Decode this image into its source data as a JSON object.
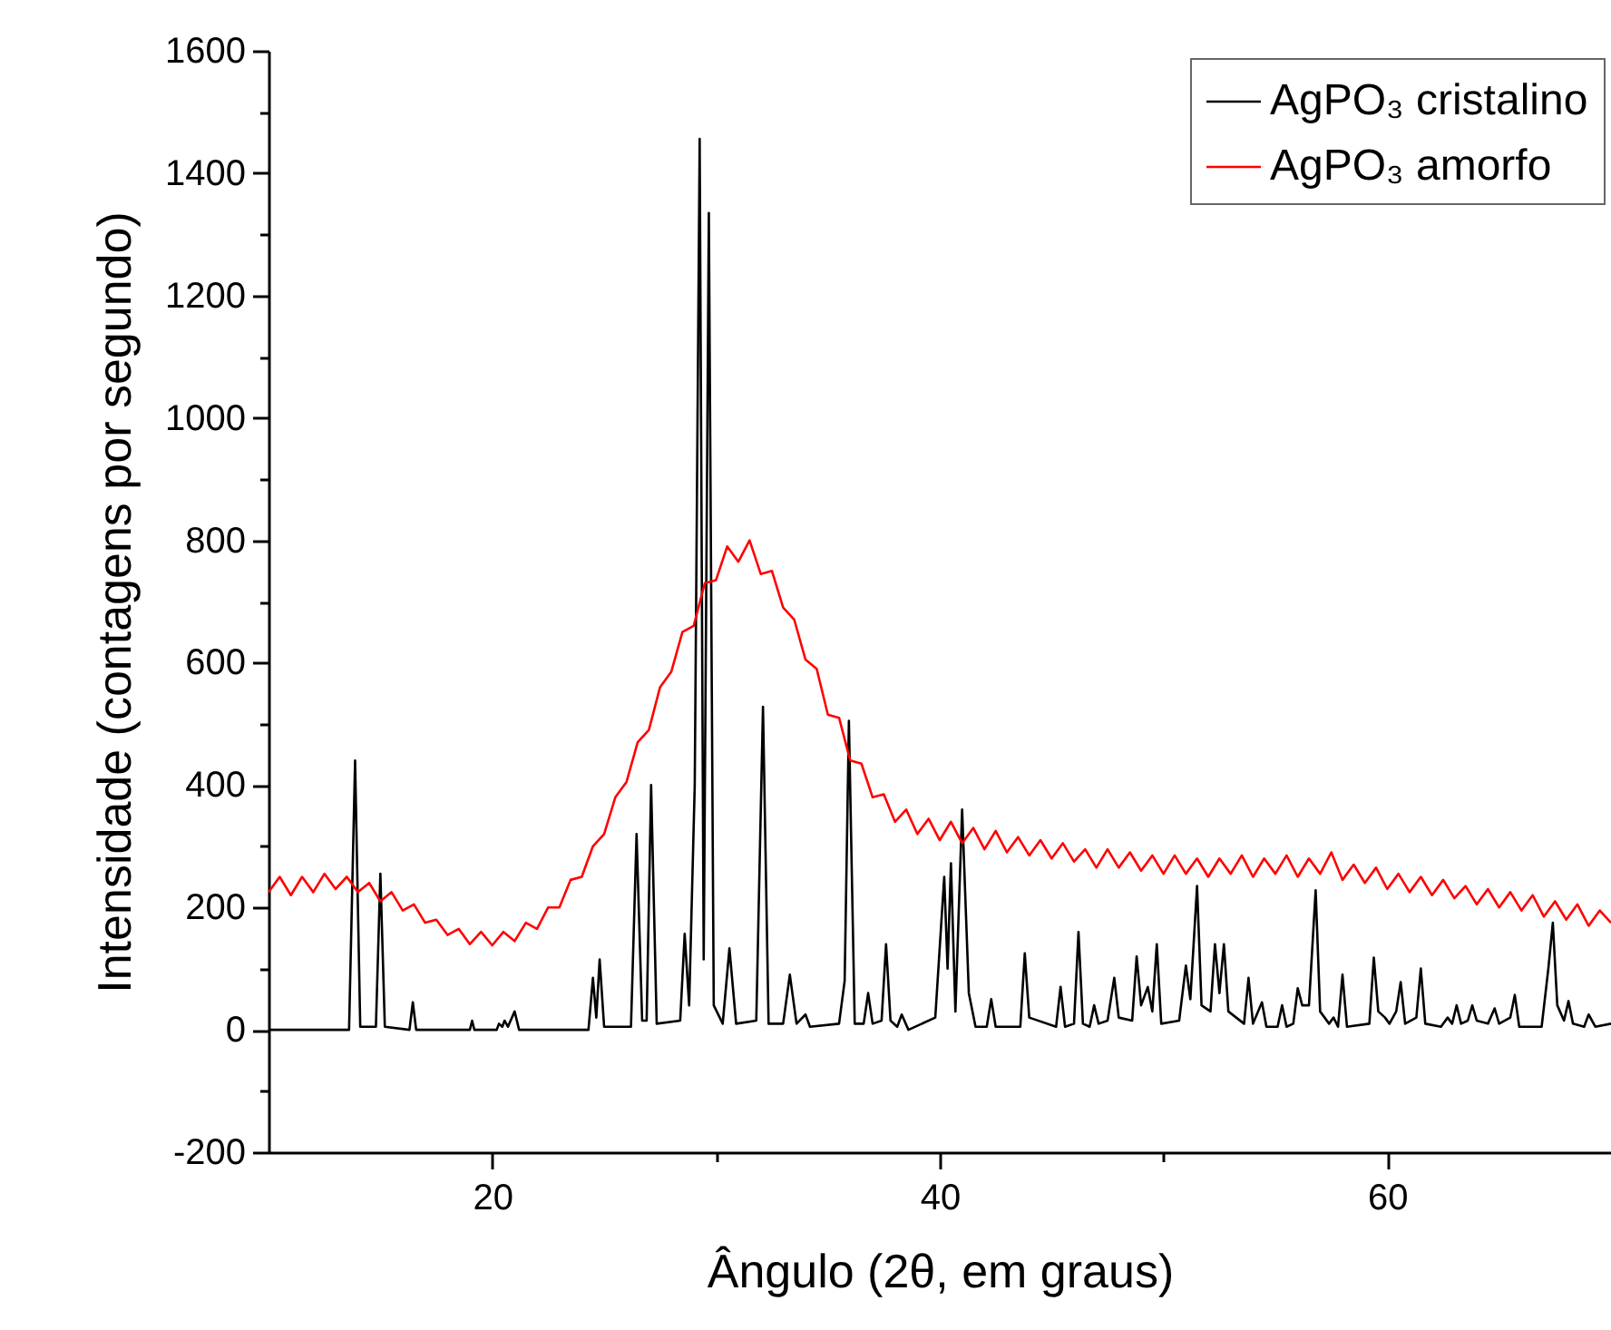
{
  "chart_data": {
    "type": "line",
    "xlabel": "Ângulo (2θ, em graus)",
    "ylabel": "Intensidade (contagens por segundo)",
    "xlim": [
      10,
      70
    ],
    "xticks": [
      20,
      {
        "value": 30,
        "label": null
      },
      40,
      {
        "value": 50,
        "label": null
      },
      60
    ],
    "ylim": [
      -200,
      1600
    ],
    "yticks": [
      -200,
      {
        "value": -100,
        "label": null
      },
      0,
      {
        "value": 100,
        "label": null
      },
      200,
      {
        "value": 300,
        "label": null
      },
      400,
      {
        "value": 500,
        "label": null
      },
      600,
      {
        "value": 700,
        "label": null
      },
      800,
      {
        "value": 900,
        "label": null
      },
      1000,
      {
        "value": 1100,
        "label": null
      },
      1200,
      {
        "value": 1300,
        "label": null
      },
      1400,
      {
        "value": 1500,
        "label": null
      },
      1600
    ],
    "grid": false,
    "legend": "top right",
    "series": [
      {
        "name": "AgPO₃ cristalino",
        "color": "#000000",
        "x": [
          10,
          13.6,
          13.87,
          14.1,
          14.8,
          15.0,
          15.2,
          16.3,
          16.45,
          16.6,
          19.0,
          19.1,
          19.2,
          20.2,
          20.3,
          20.45,
          20.55,
          20.7,
          21.0,
          21.2,
          24.3,
          24.5,
          24.65,
          24.8,
          25.0,
          26.2,
          26.45,
          26.7,
          26.9,
          27.1,
          27.35,
          28.4,
          28.6,
          28.8,
          29.05,
          29.27,
          29.45,
          29.68,
          29.9,
          30.3,
          30.6,
          30.9,
          31.8,
          32.1,
          32.35,
          33.0,
          33.3,
          33.6,
          34.0,
          34.2,
          35.5,
          35.75,
          35.94,
          36.2,
          36.6,
          36.8,
          37.0,
          37.4,
          37.6,
          37.8,
          38.1,
          38.3,
          38.6,
          39.8,
          40.2,
          40.35,
          40.5,
          40.7,
          41.0,
          41.3,
          41.6,
          42.1,
          42.3,
          42.5,
          43.6,
          43.8,
          44.0,
          45.2,
          45.4,
          45.6,
          46.0,
          46.2,
          46.4,
          46.7,
          46.9,
          47.1,
          47.5,
          47.8,
          48.0,
          48.6,
          48.8,
          49.0,
          49.3,
          49.5,
          49.7,
          49.9,
          50.7,
          51.0,
          51.2,
          51.5,
          51.7,
          52.1,
          52.3,
          52.5,
          52.7,
          52.9,
          53.6,
          53.8,
          54.0,
          54.4,
          54.6,
          55.1,
          55.3,
          55.5,
          55.8,
          56.0,
          56.2,
          56.5,
          56.8,
          57.0,
          57.4,
          57.6,
          57.8,
          58.0,
          58.2,
          59.2,
          59.4,
          59.6,
          59.9,
          60.1,
          60.4,
          60.6,
          60.8,
          61.3,
          61.5,
          61.7,
          62.4,
          62.7,
          62.9,
          63.1,
          63.3,
          63.6,
          63.8,
          64.0,
          64.5,
          64.8,
          65.0,
          65.5,
          65.7,
          65.9,
          66.9,
          67.2,
          67.4,
          67.6,
          67.9,
          68.1,
          68.3,
          68.8,
          69.0,
          69.3,
          70
        ],
        "values": [
          0,
          0,
          440,
          5,
          5,
          255,
          5,
          0,
          45,
          0,
          0,
          15,
          0,
          0,
          10,
          5,
          15,
          5,
          30,
          0,
          0,
          85,
          20,
          115,
          5,
          5,
          320,
          15,
          15,
          400,
          10,
          15,
          157,
          40,
          400,
          1456,
          115,
          1335,
          40,
          10,
          133,
          10,
          15,
          528,
          10,
          10,
          90,
          10,
          25,
          5,
          10,
          80,
          505,
          10,
          10,
          60,
          10,
          15,
          140,
          15,
          5,
          25,
          0,
          20,
          250,
          100,
          272,
          30,
          360,
          60,
          5,
          5,
          50,
          5,
          5,
          125,
          20,
          5,
          70,
          5,
          10,
          160,
          10,
          5,
          40,
          10,
          15,
          85,
          20,
          15,
          120,
          40,
          70,
          30,
          140,
          10,
          15,
          105,
          50,
          235,
          40,
          30,
          140,
          60,
          140,
          30,
          10,
          85,
          10,
          45,
          5,
          5,
          40,
          5,
          10,
          68,
          40,
          40,
          228,
          30,
          10,
          20,
          5,
          90,
          5,
          10,
          118,
          30,
          20,
          10,
          30,
          78,
          10,
          20,
          100,
          10,
          5,
          20,
          10,
          40,
          10,
          15,
          40,
          15,
          10,
          35,
          10,
          20,
          57,
          5,
          5,
          100,
          175,
          40,
          15,
          47,
          10,
          5,
          25,
          5,
          10
        ]
      },
      {
        "name": "AgPO₃ amorfo",
        "color": "#ff0000",
        "x": [
          10,
          10.5,
          11,
          11.5,
          12,
          12.5,
          13,
          13.5,
          14,
          14.5,
          15,
          15.5,
          16,
          16.5,
          17,
          17.5,
          18,
          18.5,
          19,
          19.5,
          20,
          20.5,
          21,
          21.5,
          22,
          22.5,
          23,
          23.5,
          24,
          24.5,
          25,
          25.5,
          26,
          26.5,
          27,
          27.5,
          28,
          28.5,
          29,
          29.5,
          30,
          30.5,
          31,
          31.5,
          32,
          32.5,
          33,
          33.5,
          34,
          34.5,
          35,
          35.5,
          36,
          36.5,
          37,
          37.5,
          38,
          38.5,
          39,
          39.5,
          40,
          40.5,
          41,
          41.5,
          42,
          42.5,
          43,
          43.5,
          44,
          44.5,
          45,
          45.5,
          46,
          46.5,
          47,
          47.5,
          48,
          48.5,
          49,
          49.5,
          50,
          50.5,
          51,
          51.5,
          52,
          52.5,
          53,
          53.5,
          54,
          54.5,
          55,
          55.5,
          56,
          56.5,
          57,
          57.5,
          58,
          58.5,
          59,
          59.5,
          60,
          60.5,
          61,
          61.5,
          62,
          62.5,
          63,
          63.5,
          64,
          64.5,
          65,
          65.5,
          66,
          66.5,
          67,
          67.5,
          68,
          68.5,
          69,
          69.5,
          70
        ],
        "values": [
          225,
          250,
          220,
          250,
          225,
          255,
          230,
          250,
          225,
          240,
          210,
          225,
          195,
          205,
          175,
          180,
          155,
          165,
          140,
          160,
          138,
          160,
          145,
          175,
          165,
          200,
          200,
          245,
          250,
          300,
          320,
          380,
          405,
          470,
          490,
          560,
          585,
          650,
          660,
          730,
          735,
          790,
          765,
          800,
          745,
          750,
          690,
          670,
          605,
          590,
          515,
          510,
          440,
          435,
          380,
          385,
          340,
          360,
          320,
          345,
          310,
          340,
          305,
          330,
          295,
          325,
          290,
          315,
          285,
          310,
          280,
          305,
          275,
          295,
          265,
          295,
          265,
          290,
          260,
          285,
          255,
          285,
          255,
          280,
          250,
          280,
          255,
          285,
          250,
          280,
          255,
          285,
          250,
          280,
          255,
          290,
          245,
          270,
          240,
          265,
          230,
          255,
          225,
          250,
          220,
          245,
          215,
          235,
          205,
          230,
          200,
          225,
          195,
          220,
          185,
          210,
          180,
          205,
          170,
          195,
          175
        ]
      }
    ]
  }
}
